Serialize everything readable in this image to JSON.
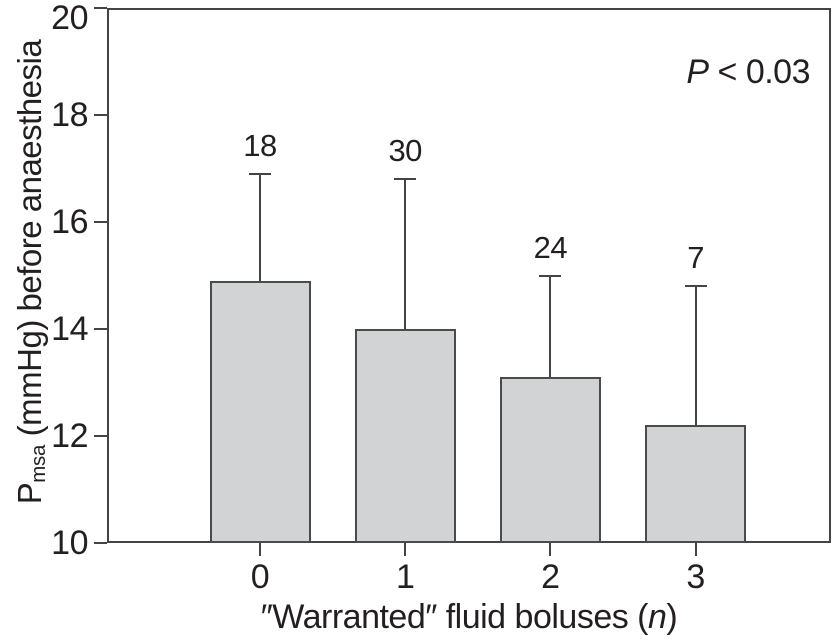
{
  "figure": {
    "background": "#ffffff",
    "text_color": "#231f20",
    "line_color": "#424447"
  },
  "chart_data": {
    "type": "bar",
    "title": "",
    "categories": [
      "0",
      "1",
      "2",
      "3"
    ],
    "values": [
      14.9,
      14.0,
      13.1,
      12.2
    ],
    "error_upper": [
      2.0,
      2.8,
      1.9,
      2.6
    ],
    "bar_count_labels": [
      "18",
      "30",
      "24",
      "7"
    ],
    "xlabel": "″Warranted″ fluid boluses (n)",
    "xlabel_prefix": "″Warranted″ fluid boluses (",
    "xlabel_italic": "n",
    "xlabel_suffix": ")",
    "ylabel": "Pmsa (mmHg) before anaesthesia",
    "ylabel_p": "P",
    "ylabel_sub": "msa",
    "ylabel_rest": " (mmHg) before anaesthesia",
    "ylim": [
      10,
      20
    ],
    "yticks": [
      10,
      12,
      14,
      16,
      18,
      20
    ],
    "annotation": "P < 0.03",
    "annotation_italic": "P",
    "annotation_rest": " < 0.03",
    "bar_fill": "#d1d3d4",
    "bar_border": "#4a4b4d",
    "legend": "none",
    "grid": false
  }
}
